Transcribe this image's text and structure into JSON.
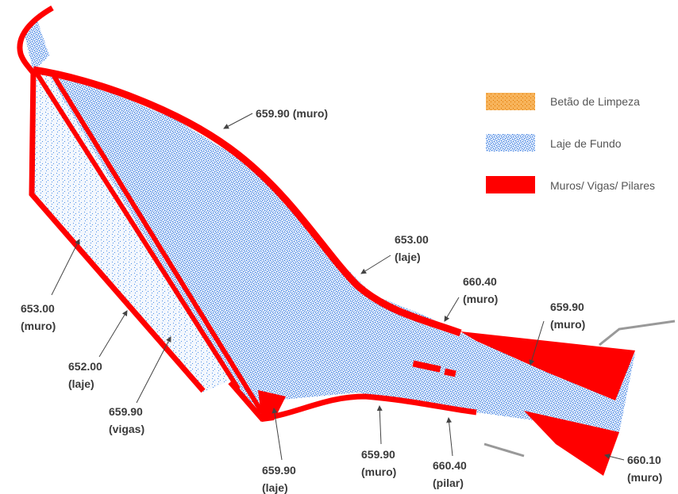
{
  "legend": [
    {
      "label": "Betão de Limpeza",
      "color": "#f39a2a"
    },
    {
      "label": "Laje de Fundo",
      "color": "#3f86e6"
    },
    {
      "label": "Muros/ Vigas/ Pilares",
      "color": "#ff0000"
    }
  ],
  "annotations": [
    {
      "lines": [
        "659.90 (muro)"
      ]
    },
    {
      "lines": [
        "653.00",
        "(laje)"
      ]
    },
    {
      "lines": [
        "660.40",
        "(muro)"
      ]
    },
    {
      "lines": [
        "659.90",
        "(muro)"
      ]
    },
    {
      "lines": [
        "653.00",
        "(muro)"
      ]
    },
    {
      "lines": [
        "652.00",
        "(laje)"
      ]
    },
    {
      "lines": [
        "659.90",
        "(vigas)"
      ]
    },
    {
      "lines": [
        "659.90",
        "(laje)"
      ]
    },
    {
      "lines": [
        "659.90",
        "(muro)"
      ]
    },
    {
      "lines": [
        "660.40",
        "(pilar)"
      ]
    },
    {
      "lines": [
        "660.10",
        "(muro)"
      ]
    }
  ]
}
